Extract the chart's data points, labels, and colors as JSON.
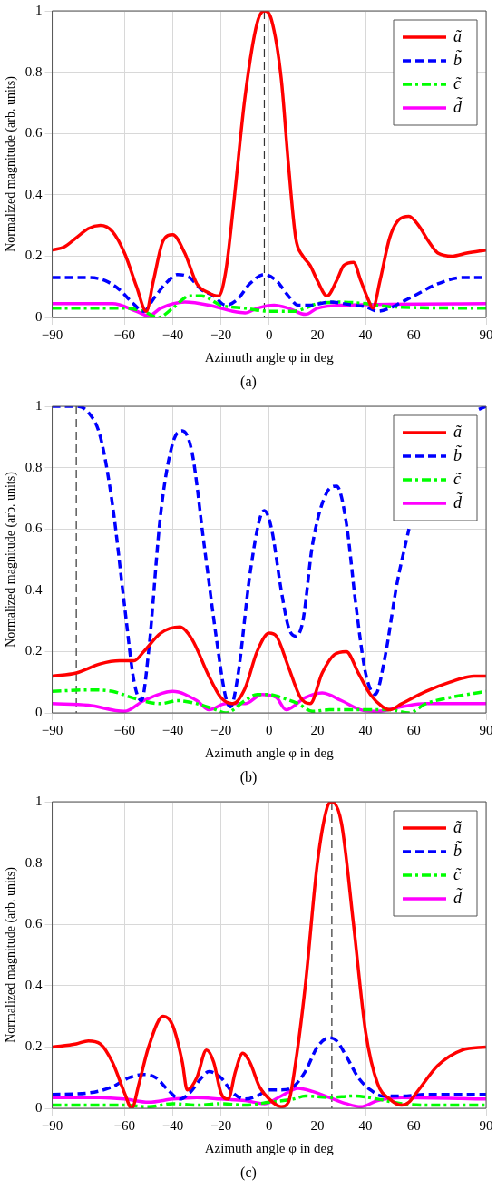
{
  "chart_data": [
    {
      "type": "line",
      "xlabel": "Azimuth angle φ in deg",
      "ylabel": "Normalized magnitude (arb. units)",
      "annotations": [
        "(a)"
      ],
      "xlim": [
        -90,
        90
      ],
      "xticks": [
        -90,
        -60,
        -40,
        -20,
        0,
        20,
        40,
        60,
        90
      ],
      "ylim": [
        0,
        1
      ],
      "yticks": [
        0,
        0.2,
        0.4,
        0.6,
        0.8,
        1
      ],
      "grid": true,
      "legend": "top right",
      "marker": "none",
      "ref_lines": [
        {
          "axis": "x",
          "value": -2,
          "color": "#333333",
          "line_style": "dashed"
        }
      ],
      "series": [
        {
          "name": "ã",
          "color": "#ff0000",
          "line_style": "solid",
          "x": [
            -90,
            -85,
            -80,
            -75,
            -70,
            -65,
            -60,
            -55,
            -51,
            -48,
            -44,
            -40,
            -35,
            -30,
            -25,
            -21,
            -18,
            -15,
            -10,
            -5,
            -2,
            1,
            5,
            8,
            11,
            14,
            17,
            20,
            24,
            28,
            31,
            35,
            38,
            41,
            43,
            46,
            50,
            54,
            58,
            62,
            66,
            70,
            76,
            82,
            90
          ],
          "values": [
            0.22,
            0.23,
            0.26,
            0.29,
            0.3,
            0.28,
            0.21,
            0.1,
            0.02,
            0.12,
            0.25,
            0.27,
            0.21,
            0.11,
            0.08,
            0.07,
            0.15,
            0.35,
            0.72,
            0.96,
            1.0,
            0.97,
            0.78,
            0.5,
            0.26,
            0.2,
            0.17,
            0.12,
            0.07,
            0.12,
            0.17,
            0.18,
            0.12,
            0.06,
            0.03,
            0.12,
            0.26,
            0.32,
            0.33,
            0.3,
            0.25,
            0.21,
            0.2,
            0.21,
            0.22
          ]
        },
        {
          "name": "b̃",
          "color": "#0000ff",
          "line_style": "dashed",
          "x": [
            -90,
            -75,
            -68,
            -62,
            -57,
            -52,
            -48,
            -43,
            -38,
            -33,
            -28,
            -23,
            -18,
            -13,
            -8,
            -2,
            3,
            8,
            12,
            17,
            25,
            35,
            40,
            45,
            50,
            55,
            60,
            70,
            80,
            90
          ],
          "values": [
            0.13,
            0.13,
            0.12,
            0.09,
            0.05,
            0.02,
            0.06,
            0.11,
            0.14,
            0.13,
            0.09,
            0.07,
            0.04,
            0.06,
            0.11,
            0.14,
            0.12,
            0.07,
            0.04,
            0.04,
            0.05,
            0.04,
            0.035,
            0.02,
            0.03,
            0.05,
            0.07,
            0.11,
            0.13,
            0.13
          ]
        },
        {
          "name": "c̃",
          "color": "#00ff00",
          "line_style": "dashdot",
          "x": [
            -90,
            -60,
            -52,
            -46,
            -40,
            -33,
            -28,
            -20,
            -10,
            0,
            10,
            15,
            20,
            30,
            40,
            50,
            90
          ],
          "values": [
            0.03,
            0.03,
            0.02,
            0.0,
            0.03,
            0.07,
            0.07,
            0.04,
            0.03,
            0.02,
            0.02,
            0.03,
            0.045,
            0.05,
            0.045,
            0.035,
            0.03
          ]
        },
        {
          "name": "d̃",
          "color": "#ff00ff",
          "line_style": "solid",
          "x": [
            -90,
            -65,
            -55,
            -50,
            -45,
            -35,
            -25,
            -15,
            -10,
            -5,
            2,
            8,
            15,
            20,
            30,
            90
          ],
          "values": [
            0.045,
            0.045,
            0.02,
            0.005,
            0.03,
            0.05,
            0.04,
            0.02,
            0.015,
            0.03,
            0.04,
            0.03,
            0.01,
            0.03,
            0.04,
            0.045
          ]
        }
      ]
    },
    {
      "type": "line",
      "xlabel": "Azimuth angle φ in deg",
      "ylabel": "Normalized magnitude (arb. units)",
      "annotations": [
        "(b)"
      ],
      "xlim": [
        -90,
        90
      ],
      "xticks": [
        -90,
        -60,
        -40,
        -20,
        0,
        20,
        40,
        60,
        90
      ],
      "ylim": [
        0,
        1
      ],
      "yticks": [
        0,
        0.2,
        0.4,
        0.6,
        0.8,
        1
      ],
      "grid": true,
      "legend": "top right",
      "marker": "none",
      "ref_lines": [
        {
          "axis": "x",
          "value": -80,
          "color": "#333333",
          "line_style": "dashed"
        }
      ],
      "series": [
        {
          "name": "ã",
          "color": "#ff0000",
          "line_style": "solid",
          "x": [
            -90,
            -80,
            -70,
            -62,
            -56,
            -52,
            -45,
            -37,
            -32,
            -25,
            -20,
            -15,
            -10,
            -5,
            0,
            3,
            8,
            13,
            17,
            22,
            27,
            32,
            37,
            42,
            47,
            50,
            55,
            65,
            75,
            85,
            90
          ],
          "values": [
            0.12,
            0.13,
            0.16,
            0.17,
            0.17,
            0.2,
            0.26,
            0.28,
            0.24,
            0.12,
            0.05,
            0.03,
            0.08,
            0.2,
            0.26,
            0.25,
            0.15,
            0.05,
            0.03,
            0.13,
            0.19,
            0.2,
            0.13,
            0.06,
            0.02,
            0.01,
            0.03,
            0.07,
            0.1,
            0.12,
            0.12
          ]
        },
        {
          "name": "b̃",
          "color": "#0000ff",
          "line_style": "dashed",
          "x": [
            -90,
            -80,
            -75,
            -70,
            -65,
            -60,
            -56,
            -53,
            -50,
            -45,
            -40,
            -36,
            -32,
            -27,
            -22,
            -18,
            -16,
            -13,
            -8,
            -4,
            -2,
            1,
            5,
            8,
            11,
            14,
            18,
            24,
            28,
            32,
            36,
            40,
            44,
            48,
            53,
            58,
            65,
            87,
            90
          ],
          "values": [
            1.0,
            1.0,
            0.98,
            0.9,
            0.68,
            0.35,
            0.1,
            0.04,
            0.2,
            0.65,
            0.88,
            0.92,
            0.85,
            0.55,
            0.25,
            0.05,
            0.02,
            0.12,
            0.45,
            0.63,
            0.66,
            0.6,
            0.4,
            0.28,
            0.25,
            0.3,
            0.55,
            0.72,
            0.74,
            0.62,
            0.35,
            0.13,
            0.06,
            0.18,
            0.42,
            0.6,
            null,
            0.99,
            1.0
          ]
        },
        {
          "name": "c̃",
          "color": "#00ff00",
          "line_style": "dashdot",
          "x": [
            -90,
            -75,
            -65,
            -55,
            -45,
            -38,
            -30,
            -22,
            -18,
            -10,
            -5,
            0,
            5,
            12,
            18,
            25,
            40,
            50,
            58,
            65,
            75,
            90
          ],
          "values": [
            0.07,
            0.075,
            0.07,
            0.045,
            0.03,
            0.04,
            0.03,
            0.01,
            0.0,
            0.04,
            0.06,
            0.06,
            0.05,
            0.03,
            0.005,
            0.01,
            0.01,
            0.01,
            0.0,
            0.03,
            0.05,
            0.07
          ]
        },
        {
          "name": "d̃",
          "color": "#ff00ff",
          "line_style": "solid",
          "x": [
            -90,
            -75,
            -60,
            -52,
            -40,
            -30,
            -25,
            -18,
            -10,
            -3,
            3,
            7,
            15,
            22,
            30,
            38,
            45,
            55,
            65,
            90
          ],
          "values": [
            0.03,
            0.025,
            0.005,
            0.04,
            0.07,
            0.04,
            0.01,
            0.03,
            0.03,
            0.06,
            0.05,
            0.01,
            0.05,
            0.065,
            0.04,
            0.01,
            0.005,
            0.02,
            0.03,
            0.03
          ]
        }
      ]
    },
    {
      "type": "line",
      "xlabel": "Azimuth angle φ in deg",
      "ylabel": "Normalized magnitude (arb. units)",
      "annotations": [
        "(c)"
      ],
      "xlim": [
        -90,
        90
      ],
      "xticks": [
        -90,
        -60,
        -40,
        -20,
        0,
        20,
        40,
        60,
        90
      ],
      "ylim": [
        0,
        1
      ],
      "yticks": [
        0,
        0.2,
        0.4,
        0.6,
        0.8,
        1
      ],
      "grid": true,
      "legend": "top right",
      "marker": "none",
      "ref_lines": [
        {
          "axis": "x",
          "value": 26,
          "color": "#333333",
          "line_style": "dashed"
        }
      ],
      "series": [
        {
          "name": "ã",
          "color": "#ff0000",
          "line_style": "solid",
          "x": [
            -90,
            -80,
            -75,
            -70,
            -65,
            -60,
            -57,
            -54,
            -50,
            -44,
            -40,
            -36,
            -34,
            -30,
            -26,
            -23,
            -20,
            -17,
            -14,
            -11,
            -8,
            -4,
            0,
            5,
            8,
            11,
            15,
            20,
            24,
            26,
            30,
            35,
            40,
            45,
            50,
            55,
            58,
            62,
            70,
            80,
            90
          ],
          "values": [
            0.2,
            0.21,
            0.22,
            0.21,
            0.15,
            0.05,
            0.0,
            0.08,
            0.2,
            0.3,
            0.27,
            0.15,
            0.06,
            0.1,
            0.19,
            0.15,
            0.05,
            0.03,
            0.12,
            0.18,
            0.15,
            0.07,
            0.03,
            0.005,
            0.02,
            0.15,
            0.4,
            0.8,
            0.98,
            1.0,
            0.93,
            0.6,
            0.25,
            0.08,
            0.03,
            0.01,
            0.02,
            0.06,
            0.14,
            0.19,
            0.2
          ]
        },
        {
          "name": "b̃",
          "color": "#0000ff",
          "line_style": "dashed",
          "x": [
            -90,
            -75,
            -65,
            -58,
            -52,
            -47,
            -42,
            -37,
            -33,
            -28,
            -25,
            -20,
            -15,
            -10,
            -5,
            0,
            5,
            10,
            15,
            20,
            25,
            28,
            32,
            37,
            42,
            47,
            55,
            65,
            90
          ],
          "values": [
            0.045,
            0.05,
            0.07,
            0.1,
            0.11,
            0.1,
            0.06,
            0.03,
            0.05,
            0.1,
            0.12,
            0.1,
            0.05,
            0.03,
            0.04,
            0.06,
            0.06,
            0.07,
            0.12,
            0.2,
            0.23,
            0.22,
            0.17,
            0.1,
            0.06,
            0.04,
            0.04,
            0.045,
            0.045
          ]
        },
        {
          "name": "c̃",
          "color": "#00ff00",
          "line_style": "dashdot",
          "x": [
            -90,
            -60,
            -50,
            -40,
            -30,
            -20,
            -10,
            0,
            10,
            15,
            25,
            35,
            45,
            55,
            65,
            90
          ],
          "values": [
            0.01,
            0.01,
            0.005,
            0.015,
            0.01,
            0.015,
            0.01,
            0.02,
            0.03,
            0.04,
            0.035,
            0.04,
            0.03,
            0.015,
            0.01,
            0.01
          ]
        },
        {
          "name": "d̃",
          "color": "#ff00ff",
          "line_style": "solid",
          "x": [
            -90,
            -70,
            -60,
            -50,
            -40,
            -30,
            -20,
            -10,
            -2,
            5,
            12,
            18,
            25,
            32,
            38,
            45,
            55,
            90
          ],
          "values": [
            0.035,
            0.035,
            0.03,
            0.02,
            0.03,
            0.035,
            0.03,
            0.025,
            0.015,
            0.04,
            0.065,
            0.055,
            0.035,
            0.015,
            0.005,
            0.025,
            0.035,
            0.03
          ]
        }
      ]
    }
  ]
}
